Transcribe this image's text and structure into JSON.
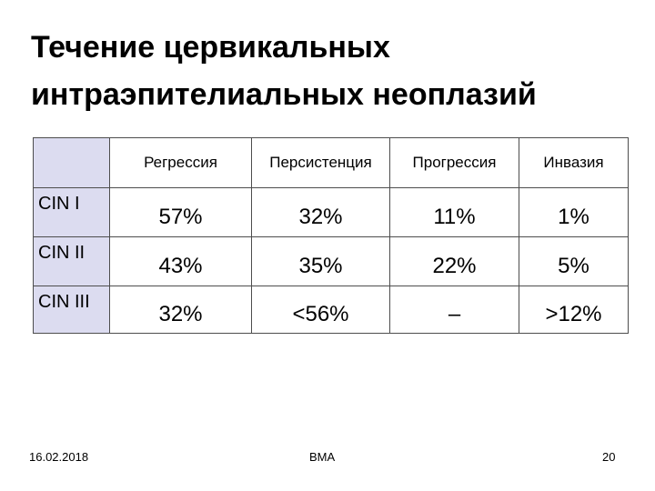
{
  "title": {
    "line1": "Течение цервикальных",
    "line2": "интраэпителиальных неоплазий"
  },
  "table": {
    "columns": [
      "Регрессия",
      "Персистенция",
      "Прогрессия",
      "Инвазия"
    ],
    "rows": [
      {
        "label": "CIN I",
        "values": [
          "57%",
          "32%",
          "11%",
          "1%"
        ]
      },
      {
        "label": "CIN II",
        "values": [
          "43%",
          "35%",
          "22%",
          "5%"
        ]
      },
      {
        "label": "CIN III",
        "values": [
          "32%",
          "<56%",
          "–",
          ">12%"
        ]
      }
    ]
  },
  "colors": {
    "header_cell_bg": "#dcdcf0",
    "border": "#4d4d4d"
  },
  "footer": {
    "date": "16.02.2018",
    "center": "ВМА",
    "page": "20"
  }
}
